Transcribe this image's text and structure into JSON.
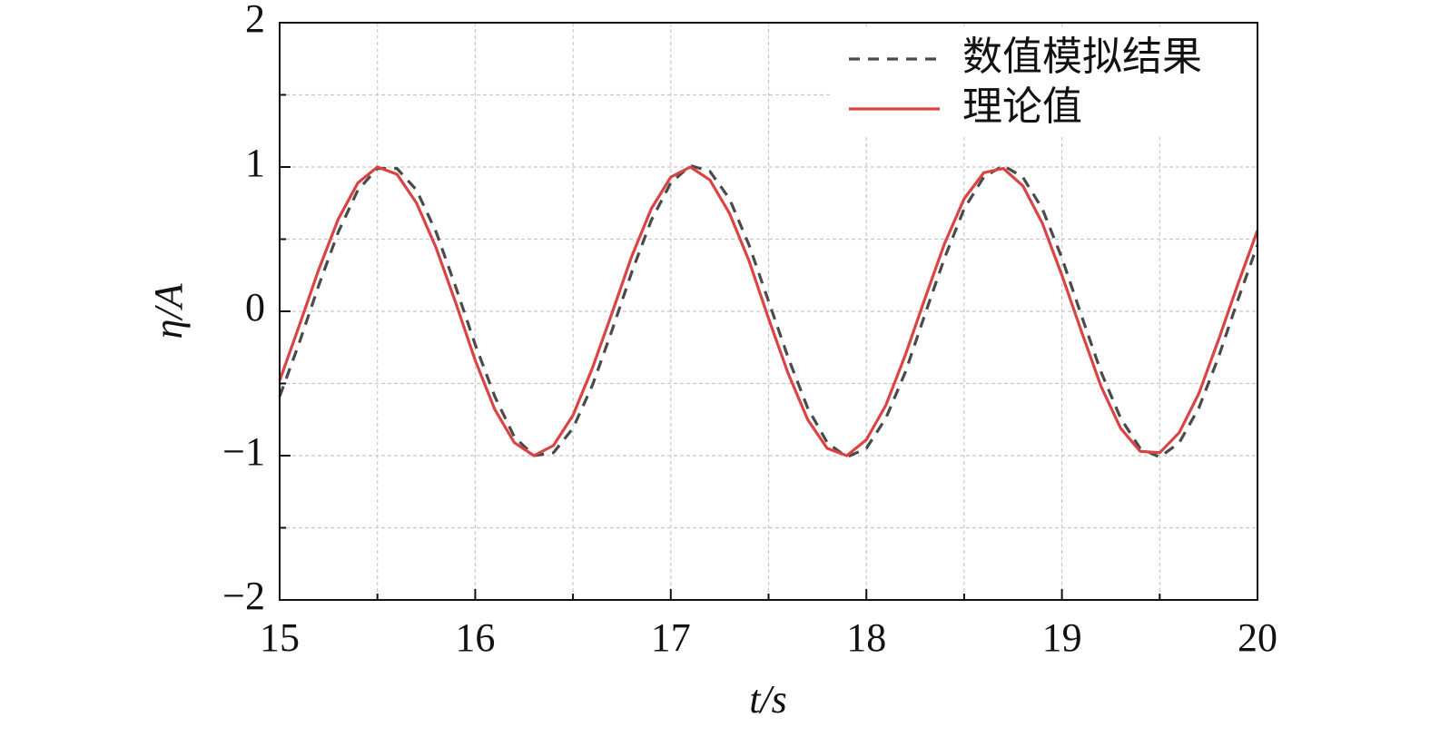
{
  "chart_data": {
    "type": "line",
    "xlabel": "t/s",
    "ylabel": "η/A",
    "x": [
      15.0,
      15.1,
      15.2,
      15.3,
      15.4,
      15.5,
      15.6,
      15.7,
      15.8,
      15.9,
      16.0,
      16.1,
      16.2,
      16.3,
      16.4,
      16.5,
      16.6,
      16.7,
      16.8,
      16.9,
      17.0,
      17.1,
      17.2,
      17.3,
      17.4,
      17.5,
      17.6,
      17.7,
      17.8,
      17.9,
      18.0,
      18.1,
      18.2,
      18.3,
      18.4,
      18.5,
      18.6,
      18.7,
      18.8,
      18.9,
      19.0,
      19.1,
      19.2,
      19.3,
      19.4,
      19.5,
      19.6,
      19.7,
      19.8,
      19.9,
      20.0
    ],
    "series": [
      {
        "name": "数值模拟结果",
        "color": "#4a4a4a",
        "dash": true,
        "values": [
          -0.59,
          -0.22,
          0.18,
          0.55,
          0.84,
          0.99,
          0.99,
          0.84,
          0.55,
          0.17,
          -0.23,
          -0.59,
          -0.87,
          -1.0,
          -0.98,
          -0.81,
          -0.51,
          -0.13,
          0.27,
          0.63,
          0.89,
          1.01,
          0.97,
          0.78,
          0.46,
          0.07,
          -0.32,
          -0.67,
          -0.91,
          -1.01,
          -0.95,
          -0.74,
          -0.42,
          -0.02,
          0.37,
          0.71,
          0.93,
          1.01,
          0.93,
          0.71,
          0.37,
          -0.03,
          -0.42,
          -0.74,
          -0.95,
          -1.01,
          -0.91,
          -0.67,
          -0.32,
          0.08,
          0.46
        ]
      },
      {
        "name": "理论值",
        "color": "#d94444",
        "dash": false,
        "values": [
          -0.48,
          -0.1,
          0.29,
          0.64,
          0.89,
          1.0,
          0.95,
          0.75,
          0.44,
          0.06,
          -0.34,
          -0.68,
          -0.91,
          -1.0,
          -0.93,
          -0.72,
          -0.39,
          -0.01,
          0.38,
          0.71,
          0.93,
          1.0,
          0.91,
          0.68,
          0.35,
          -0.05,
          -0.43,
          -0.75,
          -0.95,
          -1.0,
          -0.89,
          -0.65,
          -0.3,
          0.09,
          0.47,
          0.78,
          0.96,
          0.99,
          0.87,
          0.61,
          0.25,
          -0.14,
          -0.52,
          -0.81,
          -0.97,
          -0.98,
          -0.84,
          -0.57,
          -0.2,
          0.19,
          0.56
        ]
      }
    ],
    "xlim": [
      15,
      20
    ],
    "xticks": [
      15,
      16,
      17,
      18,
      19,
      20
    ],
    "xminor": [
      15.5,
      16.5,
      17.5,
      18.5,
      19.5
    ],
    "ylim": [
      -2,
      2
    ],
    "yticks": [
      {
        "value": -2,
        "label": "−2"
      },
      {
        "value": -1,
        "label": "−1"
      },
      0,
      1,
      2
    ],
    "yminor": [
      -1.5,
      -0.5,
      0.5,
      1.5
    ],
    "grid": true,
    "legend": "upper right"
  }
}
